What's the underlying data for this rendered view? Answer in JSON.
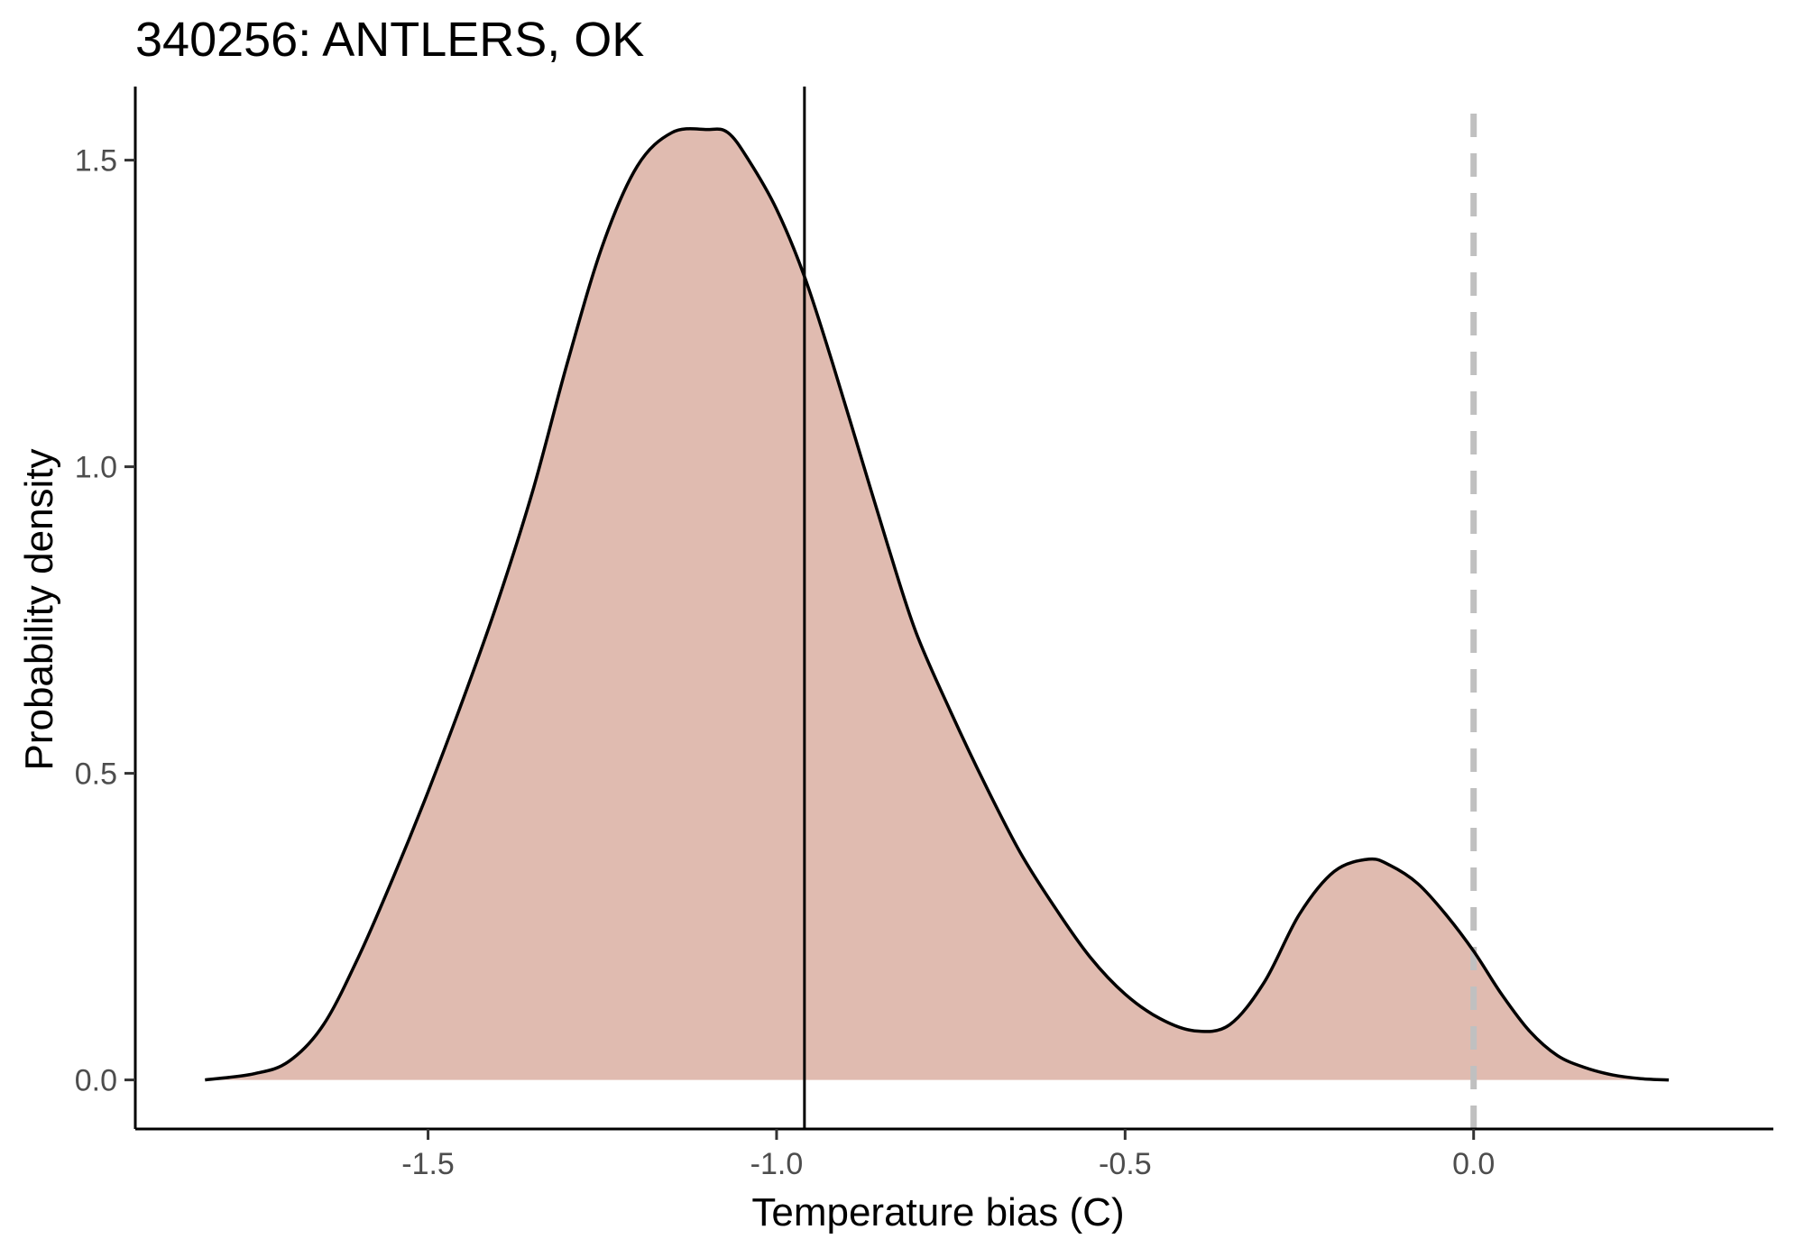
{
  "chart_data": {
    "type": "area",
    "title": "340256: ANTLERS, OK",
    "xlabel": "Temperature bias (C)",
    "ylabel": "Probability density",
    "xlim": [
      -1.92,
      0.43
    ],
    "ylim": [
      -0.08,
      1.62
    ],
    "x_ticks": [
      -1.5,
      -1.0,
      -0.5,
      0.0
    ],
    "x_tick_labels": [
      "-1.5",
      "-1.0",
      "-0.5",
      "0.0"
    ],
    "y_ticks": [
      0.0,
      0.5,
      1.0,
      1.5
    ],
    "y_tick_labels": [
      "0.0",
      "0.5",
      "1.0",
      "1.5"
    ],
    "grid": false,
    "legend": "none",
    "fill_color": "#e0bbb0",
    "line_color": "#000000",
    "reference_lines": {
      "solid_vertical_x": -0.96,
      "dashed_vertical_x": 0.0,
      "dashed_color": "#c0c0c0"
    },
    "series": [
      {
        "x": [
          -1.82,
          -1.75,
          -1.7,
          -1.65,
          -1.6,
          -1.55,
          -1.5,
          -1.45,
          -1.4,
          -1.35,
          -1.3,
          -1.25,
          -1.2,
          -1.15,
          -1.1,
          -1.07,
          -1.04,
          -1.0,
          -0.96,
          -0.92,
          -0.88,
          -0.84,
          -0.8,
          -0.75,
          -0.7,
          -0.65,
          -0.6,
          -0.55,
          -0.5,
          -0.45,
          -0.4,
          -0.35,
          -0.3,
          -0.25,
          -0.2,
          -0.15,
          -0.12,
          -0.08,
          -0.04,
          0.0,
          0.04,
          0.08,
          0.12,
          0.16,
          0.2,
          0.24,
          0.28
        ],
        "y": [
          0.0,
          0.01,
          0.03,
          0.09,
          0.2,
          0.33,
          0.47,
          0.62,
          0.78,
          0.96,
          1.17,
          1.36,
          1.49,
          1.545,
          1.55,
          1.545,
          1.5,
          1.42,
          1.31,
          1.17,
          1.02,
          0.87,
          0.73,
          0.6,
          0.48,
          0.37,
          0.28,
          0.2,
          0.14,
          0.1,
          0.08,
          0.09,
          0.16,
          0.27,
          0.34,
          0.36,
          0.35,
          0.32,
          0.27,
          0.21,
          0.14,
          0.08,
          0.04,
          0.02,
          0.008,
          0.002,
          0.0
        ]
      }
    ]
  }
}
